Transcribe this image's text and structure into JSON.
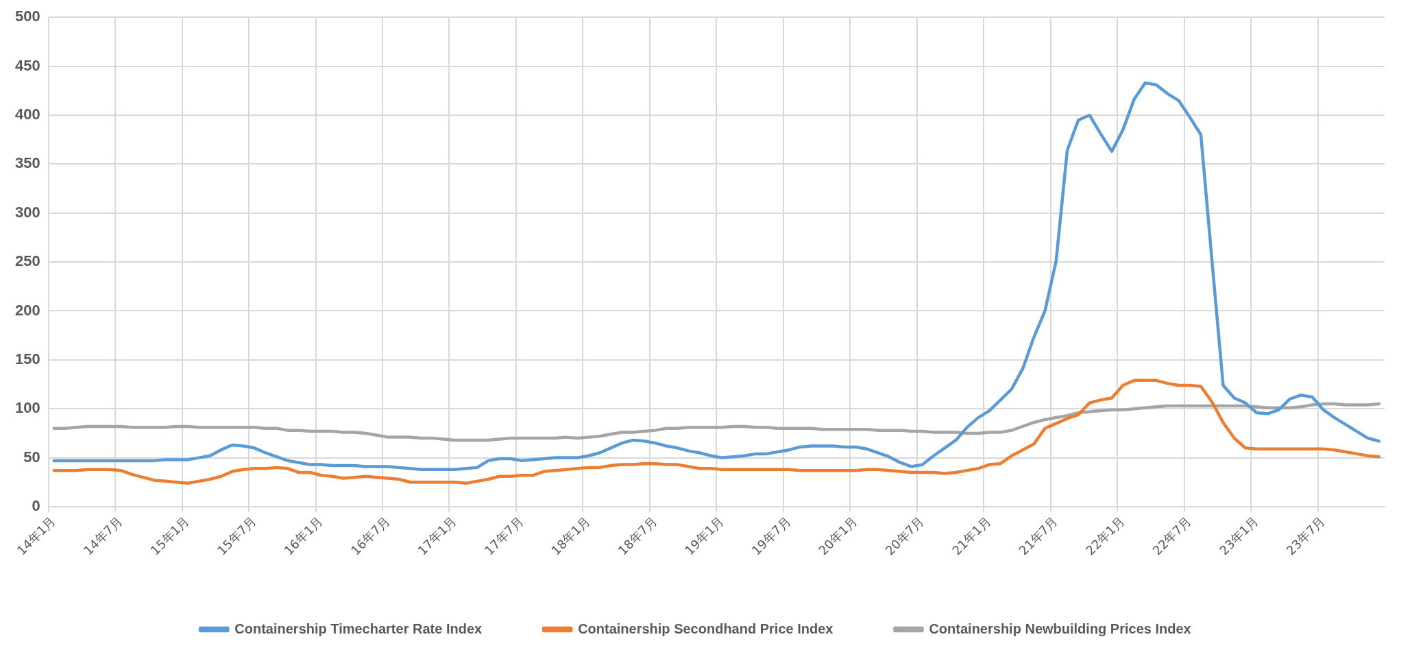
{
  "chart_data": {
    "type": "line",
    "categories": [
      "14年1月",
      null,
      null,
      null,
      null,
      null,
      "14年7月",
      null,
      null,
      null,
      null,
      null,
      "15年1月",
      null,
      null,
      null,
      null,
      null,
      "15年7月",
      null,
      null,
      null,
      null,
      null,
      "16年1月",
      null,
      null,
      null,
      null,
      null,
      "16年7月",
      null,
      null,
      null,
      null,
      null,
      "17年1月",
      null,
      null,
      null,
      null,
      null,
      "17年7月",
      null,
      null,
      null,
      null,
      null,
      "18年1月",
      null,
      null,
      null,
      null,
      null,
      "18年7月",
      null,
      null,
      null,
      null,
      null,
      "19年1月",
      null,
      null,
      null,
      null,
      null,
      "19年7月",
      null,
      null,
      null,
      null,
      null,
      "20年1月",
      null,
      null,
      null,
      null,
      null,
      "20年7月",
      null,
      null,
      null,
      null,
      null,
      "21年1月",
      null,
      null,
      null,
      null,
      null,
      "21年7月",
      null,
      null,
      null,
      null,
      null,
      "22年1月",
      null,
      null,
      null,
      null,
      null,
      "22年7月",
      null,
      null,
      null,
      null,
      null,
      "23年1月",
      null,
      null,
      null,
      null,
      null,
      "23年7月",
      null,
      null,
      null,
      null,
      null
    ],
    "series": [
      {
        "name": "Containership Timecharter Rate Index",
        "color": "#5b9bd5",
        "values": [
          47,
          47,
          47,
          47,
          47,
          47,
          47,
          47,
          47,
          47,
          48,
          48,
          48,
          50,
          52,
          58,
          63,
          62,
          60,
          55,
          51,
          47,
          45,
          43,
          43,
          42,
          42,
          42,
          41,
          41,
          41,
          40,
          39,
          38,
          38,
          38,
          38,
          39,
          40,
          47,
          49,
          49,
          47,
          48,
          49,
          50,
          50,
          50,
          52,
          55,
          60,
          65,
          68,
          67,
          65,
          62,
          60,
          57,
          55,
          52,
          50,
          51,
          52,
          54,
          54,
          56,
          58,
          61,
          62,
          62,
          62,
          61,
          61,
          59,
          55,
          51,
          45,
          41,
          43,
          52,
          60,
          68,
          81,
          91,
          98,
          109,
          120,
          141,
          173,
          200,
          251,
          364,
          395,
          400,
          381,
          363,
          385,
          416,
          433,
          431,
          422,
          415,
          398,
          380,
          251,
          124,
          111,
          106,
          96,
          95,
          99,
          110,
          114,
          112,
          99,
          91,
          84,
          77,
          70,
          67
        ]
      },
      {
        "name": "Containership Secondhand Price Index",
        "color": "#ed7d31",
        "values": [
          37,
          37,
          37,
          38,
          38,
          38,
          37,
          33,
          30,
          27,
          26,
          25,
          24,
          26,
          28,
          31,
          36,
          38,
          39,
          39,
          40,
          39,
          35,
          35,
          32,
          31,
          29,
          30,
          31,
          30,
          29,
          28,
          25,
          25,
          25,
          25,
          25,
          24,
          26,
          28,
          31,
          31,
          32,
          32,
          36,
          37,
          38,
          39,
          40,
          40,
          42,
          43,
          43,
          44,
          44,
          43,
          43,
          41,
          39,
          39,
          38,
          38,
          38,
          38,
          38,
          38,
          38,
          37,
          37,
          37,
          37,
          37,
          37,
          38,
          38,
          37,
          36,
          35,
          35,
          35,
          34,
          35,
          37,
          39,
          43,
          44,
          52,
          58,
          64,
          80,
          85,
          90,
          94,
          106,
          109,
          111,
          124,
          129,
          129,
          129,
          126,
          124,
          124,
          123,
          107,
          86,
          70,
          60,
          59,
          59,
          59,
          59,
          59,
          59,
          59,
          58,
          56,
          54,
          52,
          51
        ]
      },
      {
        "name": "Containership Newbuilding Prices Index",
        "color": "#a5a5a5",
        "values": [
          80,
          80,
          81,
          82,
          82,
          82,
          82,
          81,
          81,
          81,
          81,
          82,
          82,
          81,
          81,
          81,
          81,
          81,
          81,
          80,
          80,
          78,
          78,
          77,
          77,
          77,
          76,
          76,
          75,
          73,
          71,
          71,
          71,
          70,
          70,
          69,
          68,
          68,
          68,
          68,
          69,
          70,
          70,
          70,
          70,
          70,
          71,
          70,
          71,
          72,
          74,
          76,
          76,
          77,
          78,
          80,
          80,
          81,
          81,
          81,
          81,
          82,
          82,
          81,
          81,
          80,
          80,
          80,
          80,
          79,
          79,
          79,
          79,
          79,
          78,
          78,
          78,
          77,
          77,
          76,
          76,
          76,
          75,
          75,
          76,
          76,
          78,
          82,
          86,
          89,
          91,
          93,
          96,
          97,
          98,
          99,
          99,
          100,
          101,
          102,
          103,
          103,
          103,
          103,
          103,
          103,
          103,
          103,
          102,
          101,
          101,
          101,
          102,
          104,
          105,
          105,
          104,
          104,
          104,
          105
        ]
      }
    ],
    "ylim": [
      0,
      500
    ],
    "yticks": [
      0,
      50,
      100,
      150,
      200,
      250,
      300,
      350,
      400,
      450,
      500
    ],
    "grid": true,
    "legend": "bottom"
  }
}
